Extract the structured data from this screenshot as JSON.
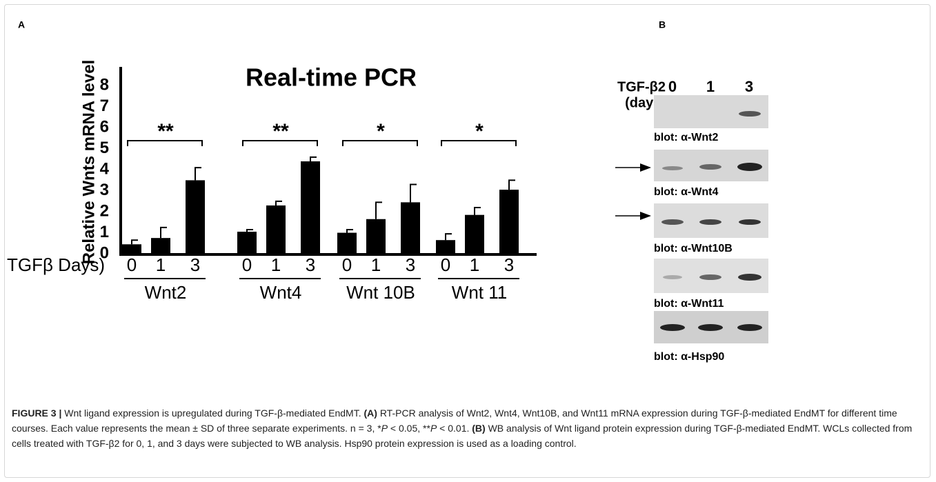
{
  "panel_a_label": "A",
  "panel_b_label": "B",
  "chart_data": {
    "type": "bar",
    "title": "Real-time PCR",
    "y_label": "Relative Wnts mRNA level",
    "x_label": "TGFβ Days)",
    "categories": [
      "0",
      "1",
      "3"
    ],
    "color": "#000000",
    "groups": [
      {
        "name": "Wnt2",
        "values": [
          0.45,
          0.75,
          3.5
        ],
        "errors": [
          0.2,
          0.5,
          0.6
        ],
        "significance": "**"
      },
      {
        "name": "Wnt4",
        "values": [
          1.05,
          2.3,
          4.4
        ],
        "errors": [
          0.1,
          0.2,
          0.2
        ],
        "significance": "**"
      },
      {
        "name": "Wnt 10B",
        "values": [
          1.0,
          1.65,
          2.45
        ],
        "errors": [
          0.15,
          0.8,
          0.85
        ],
        "significance": "*"
      },
      {
        "name": "Wnt 11",
        "values": [
          0.65,
          1.85,
          3.05
        ],
        "errors": [
          0.3,
          0.35,
          0.45
        ],
        "significance": "*"
      }
    ],
    "ylim": [
      0,
      8.8
    ],
    "yticks": [
      0,
      1,
      2,
      3,
      4,
      5,
      6,
      7,
      8
    ]
  },
  "blot": {
    "treatment": [
      "TGF-β2",
      "(days)"
    ],
    "lanes": [
      "0",
      "1",
      "3"
    ],
    "labels": [
      "blot: α-Wnt2",
      "blot: α-Wnt4",
      "blot: α-Wnt10B",
      "blot: α-Wnt11",
      "blot: α-Hsp90"
    ]
  },
  "caption": {
    "label": "FIGURE 3 |",
    "parts": [
      " Wnt ligand expression is upregulated during TGF-β-mediated EndMT. ",
      "(A)",
      " RT-PCR analysis of Wnt2, Wnt4, Wnt10B, and Wnt11 mRNA expression during TGF-β-mediated EndMT for different time courses. Each value represents the mean ± SD of three separate experiments. n = 3, *",
      "P",
      " < 0.05, **",
      "P",
      " < 0.01. ",
      "(B)",
      " WB analysis of Wnt ligand protein expression during TGF-β-mediated EndMT. WCLs collected from cells treated with TGF-β2 for 0, 1, and 3 days were subjected to WB analysis. Hsp90 protein expression is used as a loading control."
    ]
  }
}
